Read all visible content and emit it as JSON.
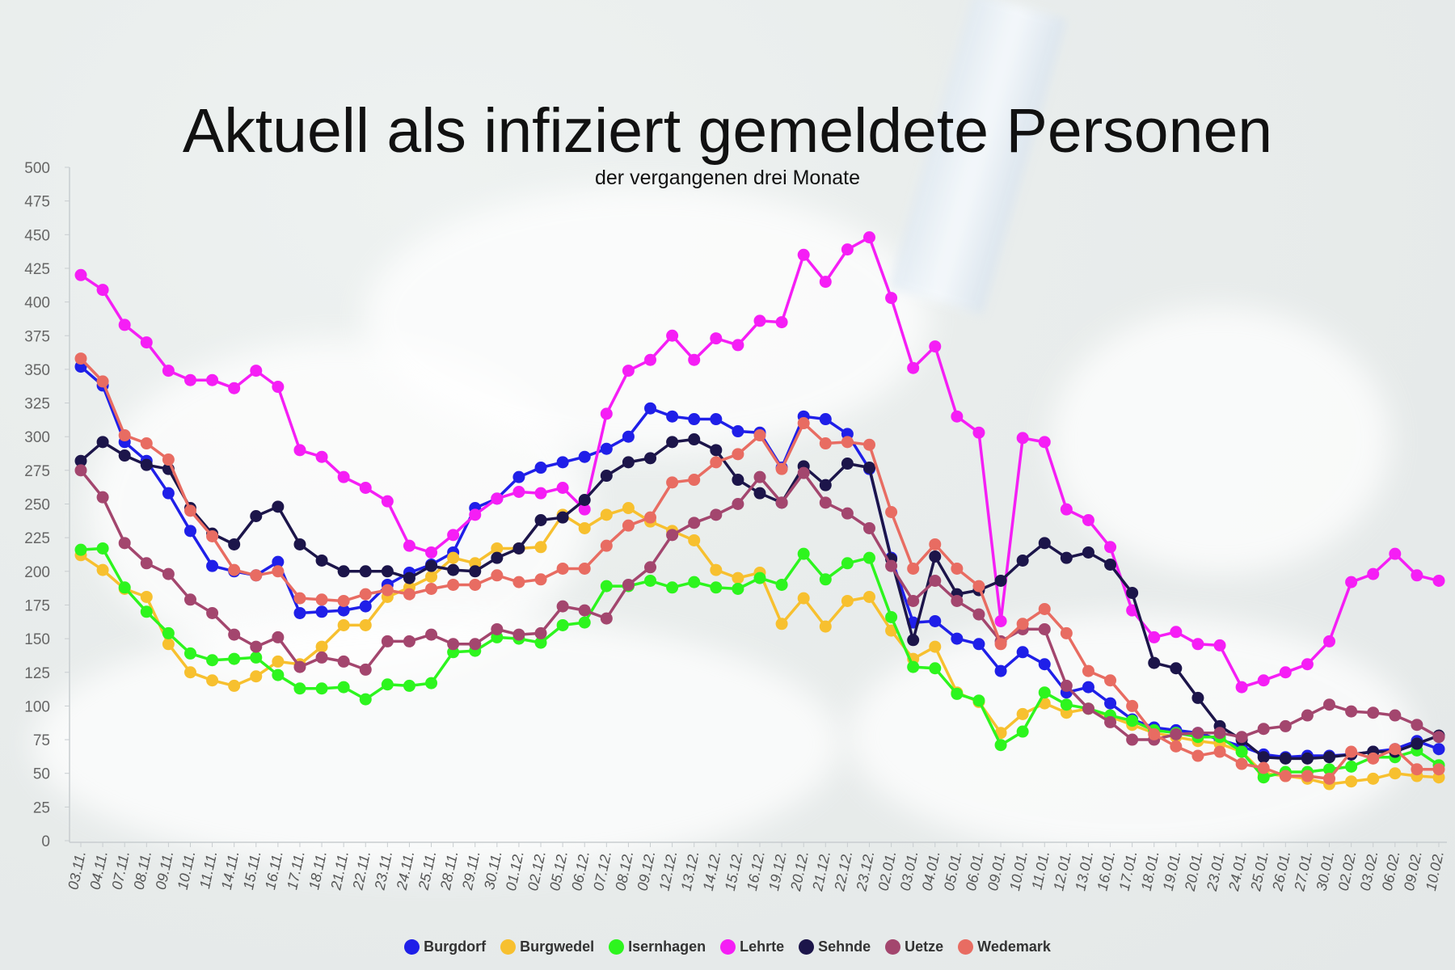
{
  "title": "Aktuell als infiziert gemeldete Personen",
  "subtitle": "der vergangenen drei Monate",
  "chart_data": {
    "type": "line",
    "title": "Aktuell als infiziert gemeldete Personen",
    "subtitle": "der vergangenen drei Monate",
    "ylim": [
      0,
      500
    ],
    "yticks": [
      "0",
      "25",
      "50",
      "75",
      "100",
      "125",
      "150",
      "175",
      "200",
      "225",
      "250",
      "275",
      "300",
      "325",
      "350",
      "375",
      "400",
      "425",
      "450",
      "475",
      "500"
    ],
    "legend_position": "bottom",
    "grid": false,
    "categories": [
      "03.11.",
      "04.11.",
      "07.11.",
      "08.11.",
      "09.11.",
      "10.11.",
      "11.11.",
      "14.11.",
      "15.11.",
      "16.11.",
      "17.11.",
      "18.11.",
      "21.11.",
      "22.11.",
      "23.11.",
      "24.11.",
      "25.11.",
      "28.11.",
      "29.11.",
      "30.11.",
      "01.12.",
      "02.12.",
      "05.12.",
      "06.12.",
      "07.12.",
      "08.12.",
      "09.12.",
      "12.12.",
      "13.12.",
      "14.12.",
      "15.12.",
      "16.12.",
      "19.12.",
      "20.12.",
      "21.12.",
      "22.12.",
      "23.12.",
      "02.01.",
      "03.01.",
      "04.01.",
      "05.01.",
      "06.01.",
      "09.01.",
      "10.01.",
      "11.01.",
      "12.01.",
      "13.01.",
      "16.01.",
      "17.01.",
      "18.01.",
      "19.01.",
      "20.01.",
      "23.01.",
      "24.01.",
      "25.01.",
      "26.01.",
      "27.01.",
      "30.01.",
      "02.02.",
      "03.02.",
      "06.02.",
      "09.02.",
      "10.02."
    ],
    "x_labels": [
      "03.11.",
      "04.11.",
      "07.11.",
      "08.11.",
      "09.11.",
      "10.11.",
      "11.11.",
      "14.11.",
      "15.11.",
      "16.11.",
      "17.11.",
      "18.11.",
      "21.11.",
      "22.11.",
      "23.11.",
      "24.11.",
      "25.11.",
      "28.11.",
      "29.11.",
      "30.11.",
      "01.12.",
      "02.12.",
      "05.12.",
      "06.12.",
      "07.12.",
      "08.12.",
      "09.12.",
      "12.12.",
      "13.12.",
      "14.12.",
      "15.12.",
      "16.12.",
      "19.12.",
      "20.12.",
      "21.12.",
      "22.12.",
      "23.12.",
      "02.01.",
      "03.01.",
      "04.01.",
      "05.01.",
      "06.01.",
      "09.01.",
      "10.01.",
      "11.01.",
      "12.01.",
      "13.01.",
      "16.01.",
      "17.01.",
      "18.01.",
      "19.01.",
      "20.01.",
      "23.01.",
      "24.01.",
      "25.01.",
      "26.01.",
      "27.01.",
      "30.01.",
      "02.02.",
      "03.02.",
      "06.02.",
      "09.02.",
      "10.02."
    ],
    "series": [
      {
        "name": "Burgdorf",
        "color": "#1f1fe8",
        "values": [
          352,
          338,
          296,
          282,
          258,
          230,
          204,
          200,
          197,
          207,
          169,
          170,
          171,
          174,
          190,
          199,
          205,
          214,
          247,
          254,
          270,
          277,
          281,
          285,
          291,
          300,
          321,
          315,
          313,
          313,
          304,
          303,
          277,
          315,
          313,
          302,
          276,
          210,
          162,
          163,
          150,
          146,
          126,
          140,
          131,
          110,
          114,
          102,
          90,
          84,
          82,
          80,
          75,
          70,
          64,
          62,
          63,
          63,
          64,
          66,
          68,
          74,
          68
        ]
      },
      {
        "name": "Burgwedel",
        "color": "#f7c02f",
        "values": [
          212,
          201,
          187,
          181,
          146,
          125,
          119,
          115,
          122,
          133,
          131,
          144,
          160,
          160,
          181,
          188,
          196,
          210,
          206,
          217,
          217,
          218,
          242,
          232,
          242,
          247,
          237,
          230,
          223,
          201,
          195,
          199,
          161,
          180,
          159,
          178,
          181,
          156,
          135,
          144,
          110,
          103,
          80,
          94,
          102,
          95,
          98,
          92,
          86,
          80,
          77,
          74,
          72,
          66,
          50,
          48,
          46,
          42,
          44,
          46,
          50,
          48,
          47
        ]
      },
      {
        "name": "Isernhagen",
        "color": "#2df51e",
        "values": [
          216,
          217,
          188,
          170,
          154,
          139,
          134,
          135,
          136,
          123,
          113,
          113,
          114,
          105,
          116,
          115,
          117,
          140,
          141,
          151,
          150,
          147,
          160,
          162,
          189,
          189,
          193,
          188,
          192,
          188,
          187,
          195,
          190,
          213,
          194,
          206,
          210,
          166,
          129,
          128,
          109,
          104,
          71,
          81,
          110,
          101,
          98,
          93,
          89,
          82,
          80,
          77,
          77,
          66,
          47,
          51,
          51,
          53,
          55,
          62,
          62,
          67,
          56
        ]
      },
      {
        "name": "Lehrte",
        "color": "#f51ef5",
        "values": [
          420,
          409,
          383,
          370,
          349,
          342,
          342,
          336,
          349,
          337,
          290,
          285,
          270,
          262,
          252,
          219,
          214,
          227,
          242,
          254,
          259,
          258,
          262,
          246,
          317,
          349,
          357,
          375,
          357,
          373,
          368,
          386,
          385,
          435,
          415,
          439,
          448,
          403,
          351,
          367,
          315,
          303,
          163,
          299,
          296,
          246,
          238,
          218,
          171,
          151,
          155,
          146,
          145,
          114,
          119,
          125,
          131,
          148,
          192,
          198,
          213,
          197,
          193
        ]
      },
      {
        "name": "Sehnde",
        "color": "#1c154a",
        "values": [
          282,
          296,
          286,
          279,
          276,
          247,
          228,
          220,
          241,
          248,
          220,
          208,
          200,
          200,
          200,
          195,
          204,
          201,
          200,
          210,
          217,
          238,
          240,
          253,
          271,
          281,
          284,
          296,
          298,
          290,
          268,
          258,
          251,
          278,
          264,
          280,
          277,
          209,
          149,
          211,
          183,
          186,
          193,
          208,
          221,
          210,
          214,
          205,
          184,
          132,
          128,
          106,
          85,
          75,
          62,
          61,
          61,
          62,
          64,
          66,
          66,
          72,
          78
        ]
      },
      {
        "name": "Uetze",
        "color": "#a3466e",
        "values": [
          275,
          255,
          221,
          206,
          198,
          179,
          169,
          153,
          144,
          151,
          129,
          136,
          133,
          127,
          148,
          148,
          153,
          146,
          146,
          157,
          153,
          154,
          174,
          171,
          165,
          190,
          203,
          227,
          236,
          242,
          250,
          270,
          251,
          273,
          251,
          243,
          232,
          204,
          178,
          193,
          178,
          168,
          148,
          157,
          157,
          115,
          98,
          88,
          75,
          75,
          79,
          80,
          80,
          77,
          83,
          85,
          93,
          101,
          96,
          95,
          93,
          86,
          77
        ]
      },
      {
        "name": "Wedemark",
        "color": "#e86c62",
        "values": [
          358,
          341,
          301,
          295,
          283,
          245,
          226,
          201,
          197,
          200,
          180,
          179,
          178,
          183,
          186,
          183,
          187,
          190,
          190,
          197,
          192,
          194,
          202,
          202,
          219,
          234,
          240,
          266,
          268,
          281,
          287,
          301,
          276,
          310,
          295,
          296,
          294,
          244,
          202,
          220,
          202,
          189,
          146,
          161,
          172,
          154,
          126,
          119,
          100,
          79,
          70,
          63,
          66,
          57,
          54,
          48,
          48,
          46,
          66,
          61,
          68,
          53,
          53
        ]
      }
    ]
  }
}
